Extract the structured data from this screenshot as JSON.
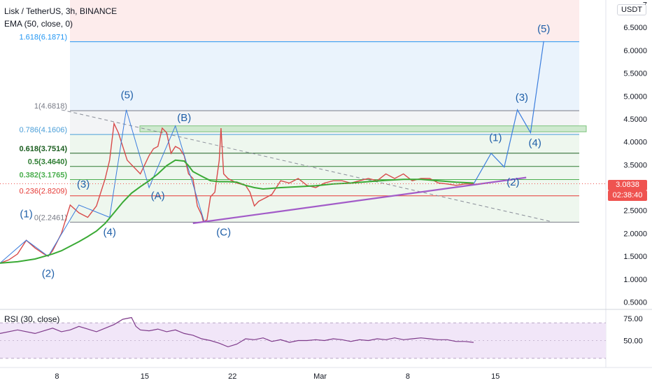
{
  "header": {
    "symbol_line": "Lisk / TetherUS, 3h, BINANCE",
    "indicator_line": "EMA (50, close, 0)",
    "rsi_label": "RSI (30, close)",
    "currency": "USDT"
  },
  "price_tag": {
    "value": "3.0838",
    "countdown": "02:38:40"
  },
  "chart_data": [
    {
      "type": "line",
      "series": [
        {
          "name": "",
          "kind": "price",
          "color": "#d84a4a",
          "x": [
            0,
            1,
            2,
            3,
            4,
            5,
            5.5,
            6,
            7,
            8,
            9,
            10,
            11,
            12,
            12.5,
            13,
            13.5,
            14,
            14.5,
            15,
            16,
            17,
            17.5,
            18,
            18.5,
            19,
            19.5,
            20,
            20.5,
            21,
            21.5,
            22,
            22.5,
            23,
            23.2,
            23.6,
            24,
            24.5,
            25,
            25.2,
            25.5,
            26,
            27,
            28,
            28.5,
            29,
            29.5,
            30,
            31,
            32,
            33,
            34,
            35,
            36,
            37,
            38,
            39,
            40,
            41,
            42,
            43,
            44,
            45,
            46,
            47,
            48,
            49,
            50,
            51,
            52,
            53,
            54
          ],
          "y": [
            1.35,
            1.42,
            1.55,
            1.85,
            1.68,
            1.55,
            1.5,
            1.62,
            2.0,
            2.62,
            2.45,
            2.35,
            2.6,
            3.2,
            3.6,
            4.4,
            4.2,
            3.9,
            3.6,
            3.5,
            3.3,
            3.7,
            3.85,
            3.9,
            4.3,
            4.2,
            3.75,
            3.9,
            3.85,
            3.7,
            3.3,
            3.2,
            2.6,
            2.4,
            2.25,
            2.3,
            2.8,
            2.9,
            3.6,
            4.3,
            3.3,
            3.2,
            3.1,
            3.05,
            2.9,
            2.6,
            2.7,
            2.75,
            2.85,
            3.15,
            3.1,
            3.2,
            3.05,
            3.0,
            3.1,
            3.15,
            3.15,
            3.1,
            3.15,
            3.2,
            3.15,
            3.3,
            3.2,
            3.3,
            3.15,
            3.2,
            3.2,
            3.1,
            3.08,
            3.05,
            3.08,
            3.08
          ]
        },
        {
          "name": "",
          "kind": "ema",
          "color": "#3aaa35",
          "x": [
            0,
            2,
            4,
            6,
            7,
            8,
            9,
            10,
            11,
            12,
            13,
            14,
            15,
            16,
            17,
            18,
            19,
            20,
            21,
            21.5,
            22,
            23,
            24,
            25,
            26,
            27,
            28,
            29,
            30,
            32,
            34,
            36,
            38,
            40,
            42,
            44,
            46,
            48,
            50,
            52,
            54
          ],
          "y": [
            1.35,
            1.38,
            1.44,
            1.55,
            1.62,
            1.72,
            1.82,
            1.93,
            2.05,
            2.22,
            2.45,
            2.68,
            2.88,
            3.02,
            3.15,
            3.3,
            3.48,
            3.6,
            3.58,
            3.48,
            3.35,
            3.25,
            3.15,
            3.13,
            3.13,
            3.12,
            3.05,
            3.0,
            2.97,
            3.0,
            3.02,
            3.04,
            3.08,
            3.1,
            3.13,
            3.16,
            3.18,
            3.18,
            3.15,
            3.12,
            3.1
          ]
        }
      ],
      "fib_levels": [
        {
          "ratio": "0",
          "value": 2.2461,
          "label": "0(2.2461)",
          "color": "#787b86"
        },
        {
          "ratio": "0.236",
          "value": 2.8209,
          "label": "0.236(2.8209)",
          "color": "#e53935"
        },
        {
          "ratio": "0.382",
          "value": 3.1765,
          "label": "0.382(3.1765)",
          "color": "#4caf50"
        },
        {
          "ratio": "0.5",
          "value": 3.464,
          "label": "0.5(3.4640)",
          "color": "#2e7d32"
        },
        {
          "ratio": "0.618",
          "value": 3.7514,
          "label": "0.618(3.7514)",
          "color": "#1b5e20"
        },
        {
          "ratio": "0.786",
          "value": 4.1606,
          "label": "0.786(4.1606)",
          "color": "#4a9ed8"
        },
        {
          "ratio": "1",
          "value": 4.6818,
          "label": "1(4.6818)",
          "color": "#787b86"
        },
        {
          "ratio": "1.618",
          "value": 6.1871,
          "label": "1.618(6.1871)",
          "color": "#2196f3"
        }
      ],
      "green_zone": [
        4.22,
        4.35
      ],
      "wave_path": {
        "x": [
          0,
          3,
          5.5,
          9,
          12.5,
          14.4,
          17,
          20,
          23.3
        ],
        "y": [
          1.35,
          1.85,
          1.5,
          2.62,
          2.35,
          4.7,
          3.0,
          4.35,
          2.25
        ]
      },
      "projection_path": {
        "x": [
          54,
          56,
          57.5,
          59,
          60.5,
          62
        ],
        "y": [
          3.08,
          3.75,
          3.45,
          4.7,
          4.2,
          6.2
        ]
      },
      "support_line": {
        "x": [
          22,
          60
        ],
        "y": [
          2.22,
          3.22
        ]
      },
      "dashed_trend": {
        "x": [
          7,
          63
        ],
        "y": [
          4.7,
          2.25
        ]
      },
      "wave_labels": [
        {
          "text": "(1)",
          "x": 3,
          "y": 2.35
        },
        {
          "text": "(2)",
          "x": 5.5,
          "y": 1.05
        },
        {
          "text": "(3)",
          "x": 9.5,
          "y": 3.0
        },
        {
          "text": "(4)",
          "x": 12.5,
          "y": 1.95
        },
        {
          "text": "(5)",
          "x": 14.5,
          "y": 4.95
        },
        {
          "text": "(A)",
          "x": 18,
          "y": 2.75
        },
        {
          "text": "(B)",
          "x": 21,
          "y": 4.45
        },
        {
          "text": "(C)",
          "x": 25.5,
          "y": 1.95
        },
        {
          "text": "(1)",
          "x": 56.5,
          "y": 4.02
        },
        {
          "text": "(2)",
          "x": 58.5,
          "y": 3.05
        },
        {
          "text": "(3)",
          "x": 59.5,
          "y": 4.9
        },
        {
          "text": "(4)",
          "x": 61,
          "y": 3.9
        },
        {
          "text": "(5)",
          "x": 62,
          "y": 6.4
        }
      ],
      "yaxis": {
        "ticks": [
          0.5,
          1.0,
          1.5,
          2.0,
          2.5,
          3.0,
          3.5,
          4.0,
          4.5,
          5.0,
          5.5,
          6.0,
          6.5,
          7.0
        ],
        "tick_labels": [
          "0.5000",
          "1.0000",
          "1.5000",
          "2.0000",
          "2.5000",
          "3.0000",
          "3.5000",
          "4.0000",
          "4.5000",
          "5.0000",
          "5.5000",
          "6.0000",
          "6.5000",
          "7"
        ],
        "ylim": [
          0.4,
          7.1
        ]
      },
      "xaxis": {
        "xlim": [
          0,
          69
        ],
        "tick_x": [
          6.5,
          16.5,
          26.5,
          36.5,
          46.5,
          56.5
        ],
        "tick_labels": [
          "8",
          "15",
          "22",
          "Mar",
          "8",
          "15"
        ]
      },
      "grid": false
    },
    {
      "type": "line",
      "series": [
        {
          "name": "",
          "kind": "rsi",
          "color": "#7e3a8a",
          "x": [
            0,
            2,
            4,
            6,
            7,
            8,
            9,
            10,
            11,
            12,
            13,
            14,
            15,
            15.5,
            16,
            17,
            18,
            19,
            20,
            21,
            22,
            23,
            24,
            25,
            26,
            27,
            28,
            29,
            30,
            31,
            32,
            33,
            34,
            35,
            36,
            37,
            38,
            39,
            40,
            41,
            42,
            43,
            44,
            45,
            46,
            47,
            48,
            49,
            50,
            51,
            52,
            53,
            54
          ],
          "y": [
            58,
            62,
            58,
            64,
            60,
            62,
            66,
            63,
            60,
            64,
            68,
            74,
            76,
            66,
            62,
            61,
            63,
            60,
            62,
            58,
            56,
            52,
            50,
            47,
            43,
            46,
            52,
            51,
            53,
            49,
            51,
            48,
            50,
            50,
            51,
            50,
            52,
            51,
            49,
            51,
            50,
            52,
            51,
            53,
            51,
            52,
            53,
            52,
            51,
            51,
            49,
            49,
            48
          ]
        }
      ],
      "bands": [
        30,
        70
      ],
      "yaxis": {
        "tick_values": [
          50,
          75
        ],
        "tick_labels": [
          "50.00",
          "75.00"
        ],
        "ylim": [
          22,
          82
        ]
      }
    }
  ]
}
